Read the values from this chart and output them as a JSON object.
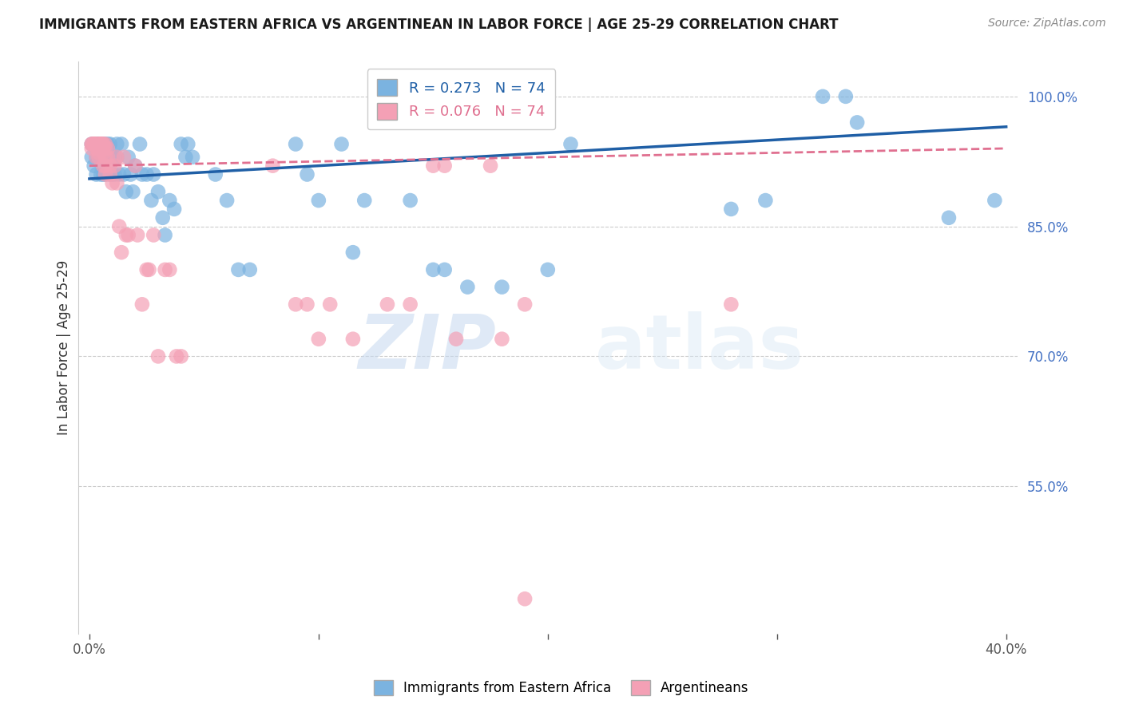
{
  "title": "IMMIGRANTS FROM EASTERN AFRICA VS ARGENTINEAN IN LABOR FORCE | AGE 25-29 CORRELATION CHART",
  "source": "Source: ZipAtlas.com",
  "ylabel": "In Labor Force | Age 25-29",
  "yticks": [
    "100.0%",
    "85.0%",
    "70.0%",
    "55.0%"
  ],
  "ytick_vals": [
    1.0,
    0.85,
    0.7,
    0.55
  ],
  "xlim": [
    0.0,
    0.4
  ],
  "ylim": [
    0.38,
    1.04
  ],
  "blue_R": 0.273,
  "blue_N": 74,
  "pink_R": 0.076,
  "pink_N": 74,
  "blue_color": "#7bb3e0",
  "pink_color": "#f4a0b5",
  "blue_line_color": "#1f5fa6",
  "pink_line_color": "#e07090",
  "blue_line_slope": 0.273,
  "pink_line_slope": 0.076,
  "blue_scatter": [
    [
      0.001,
      0.945
    ],
    [
      0.001,
      0.93
    ],
    [
      0.002,
      0.945
    ],
    [
      0.002,
      0.92
    ],
    [
      0.003,
      0.945
    ],
    [
      0.003,
      0.93
    ],
    [
      0.003,
      0.91
    ],
    [
      0.004,
      0.945
    ],
    [
      0.004,
      0.93
    ],
    [
      0.005,
      0.945
    ],
    [
      0.005,
      0.93
    ],
    [
      0.005,
      0.91
    ],
    [
      0.006,
      0.945
    ],
    [
      0.006,
      0.93
    ],
    [
      0.006,
      0.91
    ],
    [
      0.007,
      0.945
    ],
    [
      0.007,
      0.93
    ],
    [
      0.007,
      0.91
    ],
    [
      0.008,
      0.945
    ],
    [
      0.008,
      0.93
    ],
    [
      0.009,
      0.945
    ],
    [
      0.009,
      0.91
    ],
    [
      0.01,
      0.93
    ],
    [
      0.01,
      0.91
    ],
    [
      0.011,
      0.93
    ],
    [
      0.011,
      0.91
    ],
    [
      0.012,
      0.945
    ],
    [
      0.012,
      0.93
    ],
    [
      0.013,
      0.91
    ],
    [
      0.014,
      0.945
    ],
    [
      0.015,
      0.91
    ],
    [
      0.016,
      0.89
    ],
    [
      0.017,
      0.93
    ],
    [
      0.018,
      0.91
    ],
    [
      0.019,
      0.89
    ],
    [
      0.02,
      0.92
    ],
    [
      0.022,
      0.945
    ],
    [
      0.023,
      0.91
    ],
    [
      0.025,
      0.91
    ],
    [
      0.027,
      0.88
    ],
    [
      0.028,
      0.91
    ],
    [
      0.03,
      0.89
    ],
    [
      0.032,
      0.86
    ],
    [
      0.033,
      0.84
    ],
    [
      0.035,
      0.88
    ],
    [
      0.037,
      0.87
    ],
    [
      0.04,
      0.945
    ],
    [
      0.042,
      0.93
    ],
    [
      0.043,
      0.945
    ],
    [
      0.045,
      0.93
    ],
    [
      0.055,
      0.91
    ],
    [
      0.06,
      0.88
    ],
    [
      0.065,
      0.8
    ],
    [
      0.07,
      0.8
    ],
    [
      0.09,
      0.945
    ],
    [
      0.095,
      0.91
    ],
    [
      0.1,
      0.88
    ],
    [
      0.11,
      0.945
    ],
    [
      0.115,
      0.82
    ],
    [
      0.12,
      0.88
    ],
    [
      0.14,
      0.88
    ],
    [
      0.15,
      0.8
    ],
    [
      0.155,
      0.8
    ],
    [
      0.165,
      0.78
    ],
    [
      0.18,
      0.78
    ],
    [
      0.2,
      0.8
    ],
    [
      0.21,
      0.945
    ],
    [
      0.28,
      0.87
    ],
    [
      0.295,
      0.88
    ],
    [
      0.375,
      0.86
    ],
    [
      0.32,
      1.0
    ],
    [
      0.33,
      1.0
    ],
    [
      0.335,
      0.97
    ],
    [
      0.395,
      0.88
    ]
  ],
  "pink_scatter": [
    [
      0.001,
      0.945
    ],
    [
      0.001,
      0.94
    ],
    [
      0.001,
      0.945
    ],
    [
      0.002,
      0.945
    ],
    [
      0.002,
      0.945
    ],
    [
      0.002,
      0.945
    ],
    [
      0.002,
      0.945
    ],
    [
      0.002,
      0.945
    ],
    [
      0.003,
      0.945
    ],
    [
      0.003,
      0.945
    ],
    [
      0.003,
      0.94
    ],
    [
      0.003,
      0.93
    ],
    [
      0.004,
      0.945
    ],
    [
      0.004,
      0.94
    ],
    [
      0.004,
      0.935
    ],
    [
      0.004,
      0.93
    ],
    [
      0.005,
      0.945
    ],
    [
      0.005,
      0.945
    ],
    [
      0.005,
      0.945
    ],
    [
      0.005,
      0.94
    ],
    [
      0.005,
      0.945
    ],
    [
      0.005,
      0.945
    ],
    [
      0.005,
      0.945
    ],
    [
      0.005,
      0.945
    ],
    [
      0.006,
      0.945
    ],
    [
      0.006,
      0.935
    ],
    [
      0.006,
      0.92
    ],
    [
      0.006,
      0.945
    ],
    [
      0.006,
      0.94
    ],
    [
      0.007,
      0.945
    ],
    [
      0.007,
      0.94
    ],
    [
      0.007,
      0.93
    ],
    [
      0.007,
      0.92
    ],
    [
      0.007,
      0.91
    ],
    [
      0.008,
      0.94
    ],
    [
      0.008,
      0.93
    ],
    [
      0.009,
      0.92
    ],
    [
      0.009,
      0.91
    ],
    [
      0.01,
      0.9
    ],
    [
      0.011,
      0.92
    ],
    [
      0.012,
      0.93
    ],
    [
      0.012,
      0.9
    ],
    [
      0.013,
      0.85
    ],
    [
      0.014,
      0.82
    ],
    [
      0.015,
      0.93
    ],
    [
      0.016,
      0.84
    ],
    [
      0.017,
      0.84
    ],
    [
      0.02,
      0.92
    ],
    [
      0.021,
      0.84
    ],
    [
      0.023,
      0.76
    ],
    [
      0.025,
      0.8
    ],
    [
      0.026,
      0.8
    ],
    [
      0.028,
      0.84
    ],
    [
      0.03,
      0.7
    ],
    [
      0.033,
      0.8
    ],
    [
      0.035,
      0.8
    ],
    [
      0.038,
      0.7
    ],
    [
      0.04,
      0.7
    ],
    [
      0.08,
      0.92
    ],
    [
      0.09,
      0.76
    ],
    [
      0.095,
      0.76
    ],
    [
      0.1,
      0.72
    ],
    [
      0.105,
      0.76
    ],
    [
      0.115,
      0.72
    ],
    [
      0.13,
      0.76
    ],
    [
      0.14,
      0.76
    ],
    [
      0.15,
      0.92
    ],
    [
      0.155,
      0.92
    ],
    [
      0.16,
      0.72
    ],
    [
      0.175,
      0.92
    ],
    [
      0.18,
      0.72
    ],
    [
      0.19,
      0.76
    ],
    [
      0.19,
      0.42
    ],
    [
      0.28,
      0.76
    ]
  ],
  "watermark_zip": "ZIP",
  "watermark_atlas": "atlas",
  "background_color": "#ffffff",
  "grid_color": "#cccccc",
  "title_color": "#1a1a1a",
  "axis_label_color": "#333333",
  "right_tick_color": "#4472c4",
  "bottom_tick_color": "#555555"
}
